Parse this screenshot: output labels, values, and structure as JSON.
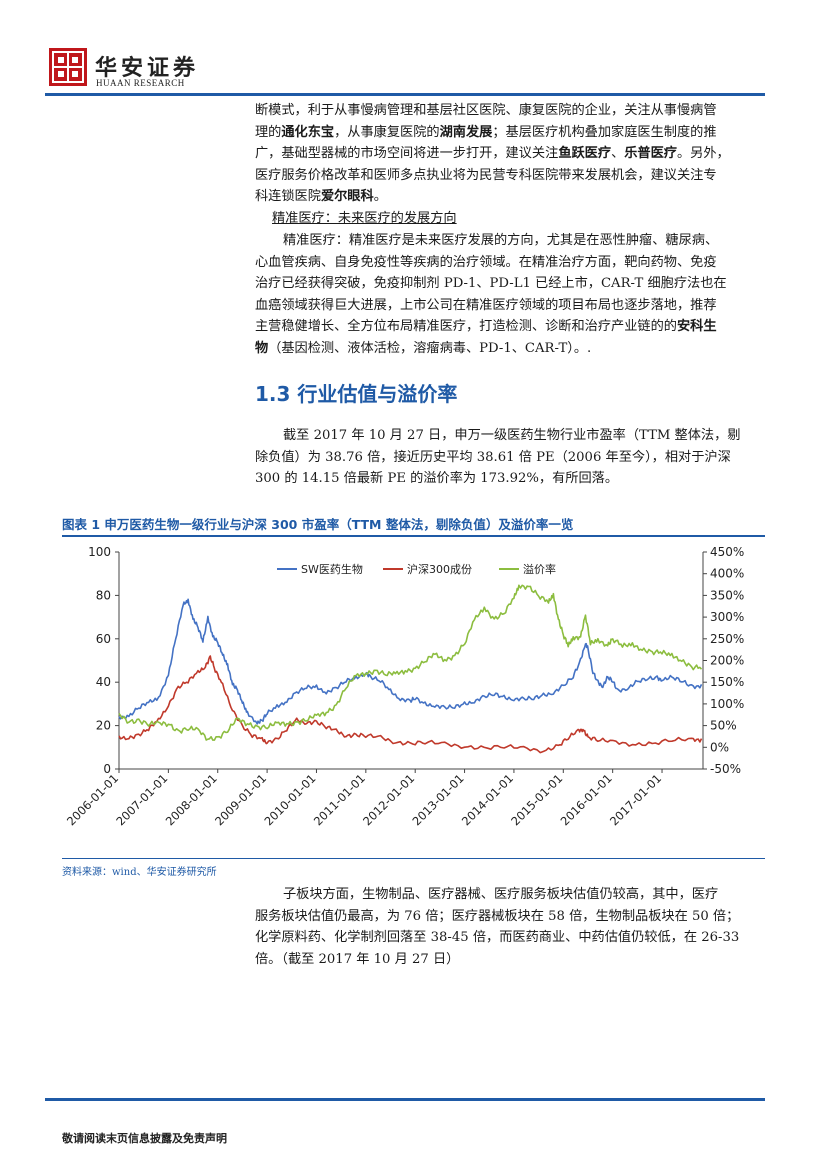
{
  "header": {
    "logo_glyph": "華",
    "brand_cn": "华安证券",
    "brand_en": "HUAAN RESEARCH"
  },
  "intro_paragraph": {
    "lines": [
      "断模式，利于从事慢病管理和基层社区医院、康复医院的企业，关注从事慢病管",
      "理的通化东宝，从事康复医院的湖南发展；基层医疗机构叠加家庭医生制度的推",
      "广，基础型器械的市场空间将进一步打开，建议关注鱼跃医疗、乐普医疗。另外，",
      "医疗服务价格改革和医师多点执业将为民营专科医院带来发展机会，建议关注专",
      "科连锁医院爱尔眼科。"
    ],
    "bold_terms": [
      "通化东宝",
      "湖南发展",
      "鱼跃医疗",
      "乐普医疗",
      "爱尔眼科"
    ]
  },
  "precision_heading": "精准医疗：未来医疗的发展方向",
  "precision_paragraph": {
    "lines": [
      "精准医疗：精准医疗是未来医疗发展的方向，尤其是在恶性肿瘤、糖尿病、",
      "心血管疾病、自身免疫性等疾病的治疗领域。在精准治疗方面，靶向药物、免疫",
      "治疗已经获得突破，免疫抑制剂 PD-1、PD-L1 已经上市，CAR-T 细胞疗法也在",
      "血癌领域获得巨大进展，上市公司在精准医疗领域的项目布局也逐步落地，推荐",
      "主营稳健增长、全方位布局精准医疗，打造检测、诊断和治疗产业链的的安科生",
      "物（基因检测、液体活检，溶瘤病毒、PD-1、CAR-T）。."
    ]
  },
  "section_heading": "1.3 行业估值与溢价率",
  "valuation_paragraph": {
    "lines": [
      "截至 2017 年 10 月 27 日，申万一级医药生物行业市盈率（TTM 整体法，剔",
      "除负值）为 38.76 倍，接近历史平均 38.61 倍 PE（2006 年至今），相对于沪深",
      "300 的 14.15 倍最新 PE 的溢价率为 173.92%，有所回落。"
    ]
  },
  "figure": {
    "title": "图表 1 申万医药生物一级行业与沪深 300 市盈率（TTM 整体法，剔除负值）及溢价率一览",
    "source": "资料来源：wind、华安证券研究所"
  },
  "chart_data": {
    "type": "line",
    "left_ylim": [
      0,
      100
    ],
    "left_yticks": [
      "0",
      "20",
      "40",
      "60",
      "80",
      "100"
    ],
    "right_ylim": [
      -50,
      450
    ],
    "right_yticks": [
      "-50%",
      "0%",
      "50%",
      "100%",
      "150%",
      "200%",
      "250%",
      "300%",
      "350%",
      "400%",
      "450%"
    ],
    "x_range": [
      2006.0,
      2017.83
    ],
    "x_ticks": [
      "2006-01-01",
      "2007-01-01",
      "2008-01-01",
      "2009-01-01",
      "2010-01-01",
      "2011-01-01",
      "2012-01-01",
      "2013-01-01",
      "2014-01-01",
      "2015-01-01",
      "2016-01-01",
      "2017-01-01"
    ],
    "x_tick_positions": [
      2006,
      2007,
      2008,
      2009,
      2010,
      2011,
      2012,
      2013,
      2014,
      2015,
      2016,
      2017
    ],
    "legend_position": "top-center",
    "series": [
      {
        "name": "SW医药生物",
        "axis": "left",
        "color": "#4472c4",
        "points": [
          [
            2006.0,
            24
          ],
          [
            2006.2,
            25
          ],
          [
            2006.4,
            28
          ],
          [
            2006.6,
            30
          ],
          [
            2006.8,
            33
          ],
          [
            2007.0,
            44
          ],
          [
            2007.15,
            60
          ],
          [
            2007.3,
            75
          ],
          [
            2007.4,
            78
          ],
          [
            2007.5,
            70
          ],
          [
            2007.6,
            65
          ],
          [
            2007.7,
            58
          ],
          [
            2007.8,
            70
          ],
          [
            2007.9,
            62
          ],
          [
            2008.0,
            58
          ],
          [
            2008.1,
            52
          ],
          [
            2008.2,
            48
          ],
          [
            2008.3,
            40
          ],
          [
            2008.4,
            36
          ],
          [
            2008.5,
            30
          ],
          [
            2008.6,
            26
          ],
          [
            2008.8,
            22
          ],
          [
            2008.9,
            22
          ],
          [
            2009.0,
            25
          ],
          [
            2009.2,
            29
          ],
          [
            2009.4,
            32
          ],
          [
            2009.6,
            35
          ],
          [
            2009.8,
            37
          ],
          [
            2010.0,
            38
          ],
          [
            2010.2,
            36
          ],
          [
            2010.4,
            37
          ],
          [
            2010.6,
            40
          ],
          [
            2010.8,
            42
          ],
          [
            2011.0,
            45
          ],
          [
            2011.1,
            42
          ],
          [
            2011.3,
            40
          ],
          [
            2011.5,
            36
          ],
          [
            2011.7,
            33
          ],
          [
            2011.9,
            31
          ],
          [
            2012.0,
            32
          ],
          [
            2012.2,
            30
          ],
          [
            2012.4,
            30
          ],
          [
            2012.6,
            28
          ],
          [
            2012.8,
            28
          ],
          [
            2013.0,
            30
          ],
          [
            2013.2,
            32
          ],
          [
            2013.4,
            33
          ],
          [
            2013.6,
            34
          ],
          [
            2013.8,
            33
          ],
          [
            2014.0,
            33
          ],
          [
            2014.2,
            32
          ],
          [
            2014.4,
            32
          ],
          [
            2014.6,
            34
          ],
          [
            2014.8,
            36
          ],
          [
            2015.0,
            38
          ],
          [
            2015.2,
            42
          ],
          [
            2015.35,
            50
          ],
          [
            2015.45,
            59
          ],
          [
            2015.5,
            55
          ],
          [
            2015.6,
            44
          ],
          [
            2015.7,
            40
          ],
          [
            2015.8,
            39
          ],
          [
            2015.9,
            42
          ],
          [
            2016.0,
            40
          ],
          [
            2016.1,
            36
          ],
          [
            2016.3,
            38
          ],
          [
            2016.5,
            40
          ],
          [
            2016.7,
            41
          ],
          [
            2016.9,
            42
          ],
          [
            2017.0,
            42
          ],
          [
            2017.2,
            42
          ],
          [
            2017.4,
            40
          ],
          [
            2017.6,
            38
          ],
          [
            2017.8,
            39
          ]
        ]
      },
      {
        "name": "沪深300成份",
        "axis": "left",
        "color": "#c0392b",
        "points": [
          [
            2006.0,
            14
          ],
          [
            2006.2,
            15
          ],
          [
            2006.4,
            16
          ],
          [
            2006.6,
            18
          ],
          [
            2006.8,
            22
          ],
          [
            2007.0,
            30
          ],
          [
            2007.2,
            38
          ],
          [
            2007.4,
            40
          ],
          [
            2007.6,
            44
          ],
          [
            2007.75,
            48
          ],
          [
            2007.85,
            52
          ],
          [
            2007.95,
            45
          ],
          [
            2008.1,
            38
          ],
          [
            2008.3,
            28
          ],
          [
            2008.5,
            20
          ],
          [
            2008.7,
            15
          ],
          [
            2008.9,
            13
          ],
          [
            2009.0,
            13
          ],
          [
            2009.2,
            14
          ],
          [
            2009.4,
            18
          ],
          [
            2009.6,
            22
          ],
          [
            2009.8,
            22
          ],
          [
            2010.0,
            22
          ],
          [
            2010.2,
            19
          ],
          [
            2010.4,
            17
          ],
          [
            2010.6,
            16
          ],
          [
            2010.8,
            16
          ],
          [
            2011.0,
            15
          ],
          [
            2011.3,
            14
          ],
          [
            2011.6,
            13
          ],
          [
            2011.9,
            12
          ],
          [
            2012.2,
            12
          ],
          [
            2012.6,
            11
          ],
          [
            2013.0,
            11
          ],
          [
            2013.4,
            10
          ],
          [
            2013.8,
            10
          ],
          [
            2014.2,
            9
          ],
          [
            2014.6,
            9
          ],
          [
            2014.9,
            11
          ],
          [
            2015.1,
            14
          ],
          [
            2015.3,
            17
          ],
          [
            2015.4,
            19
          ],
          [
            2015.5,
            15
          ],
          [
            2015.7,
            13
          ],
          [
            2016.0,
            12
          ],
          [
            2016.4,
            12
          ],
          [
            2016.8,
            12
          ],
          [
            2017.2,
            13
          ],
          [
            2017.6,
            13
          ],
          [
            2017.8,
            14
          ]
        ]
      },
      {
        "name": "溢价率",
        "axis": "right",
        "color": "#8cbd3f",
        "points": [
          [
            2006.0,
            70
          ],
          [
            2006.2,
            60
          ],
          [
            2006.4,
            65
          ],
          [
            2006.6,
            55
          ],
          [
            2006.8,
            50
          ],
          [
            2007.0,
            55
          ],
          [
            2007.2,
            40
          ],
          [
            2007.4,
            45
          ],
          [
            2007.6,
            35
          ],
          [
            2007.8,
            20
          ],
          [
            2008.0,
            25
          ],
          [
            2008.2,
            40
          ],
          [
            2008.4,
            60
          ],
          [
            2008.6,
            55
          ],
          [
            2008.8,
            50
          ],
          [
            2009.0,
            48
          ],
          [
            2009.2,
            50
          ],
          [
            2009.4,
            55
          ],
          [
            2009.6,
            60
          ],
          [
            2009.8,
            65
          ],
          [
            2010.0,
            68
          ],
          [
            2010.2,
            80
          ],
          [
            2010.4,
            100
          ],
          [
            2010.6,
            140
          ],
          [
            2010.8,
            160
          ],
          [
            2011.0,
            170
          ],
          [
            2011.2,
            180
          ],
          [
            2011.4,
            170
          ],
          [
            2011.6,
            165
          ],
          [
            2011.8,
            175
          ],
          [
            2012.0,
            185
          ],
          [
            2012.2,
            200
          ],
          [
            2012.4,
            210
          ],
          [
            2012.6,
            200
          ],
          [
            2012.8,
            215
          ],
          [
            2013.0,
            240
          ],
          [
            2013.2,
            290
          ],
          [
            2013.4,
            320
          ],
          [
            2013.6,
            300
          ],
          [
            2013.8,
            310
          ],
          [
            2014.0,
            340
          ],
          [
            2014.1,
            370
          ],
          [
            2014.3,
            375
          ],
          [
            2014.5,
            350
          ],
          [
            2014.7,
            330
          ],
          [
            2014.8,
            350
          ],
          [
            2014.9,
            300
          ],
          [
            2015.0,
            260
          ],
          [
            2015.1,
            230
          ],
          [
            2015.2,
            250
          ],
          [
            2015.35,
            260
          ],
          [
            2015.45,
            305
          ],
          [
            2015.55,
            235
          ],
          [
            2015.7,
            245
          ],
          [
            2015.9,
            240
          ],
          [
            2016.0,
            250
          ],
          [
            2016.2,
            230
          ],
          [
            2016.4,
            235
          ],
          [
            2016.6,
            230
          ],
          [
            2016.8,
            220
          ],
          [
            2017.0,
            215
          ],
          [
            2017.2,
            210
          ],
          [
            2017.4,
            205
          ],
          [
            2017.6,
            185
          ],
          [
            2017.8,
            180
          ]
        ]
      }
    ]
  },
  "sector_paragraph": {
    "lines": [
      "子板块方面，生物制品、医疗器械、医疗服务板块估值仍较高，其中，医疗",
      "服务板块估值仍最高，为 76 倍；医疗器械板块在 58 倍，生物制品板块在 50 倍；",
      "化学原料药、化学制剂回落至 38-45 倍，而医药商业、中药估值仍较低，在 26-33",
      "倍。（截至 2017 年 10 月 27 日）"
    ]
  },
  "footer": {
    "disclaimer": "敬请阅读末页信息披露及免责声明"
  }
}
